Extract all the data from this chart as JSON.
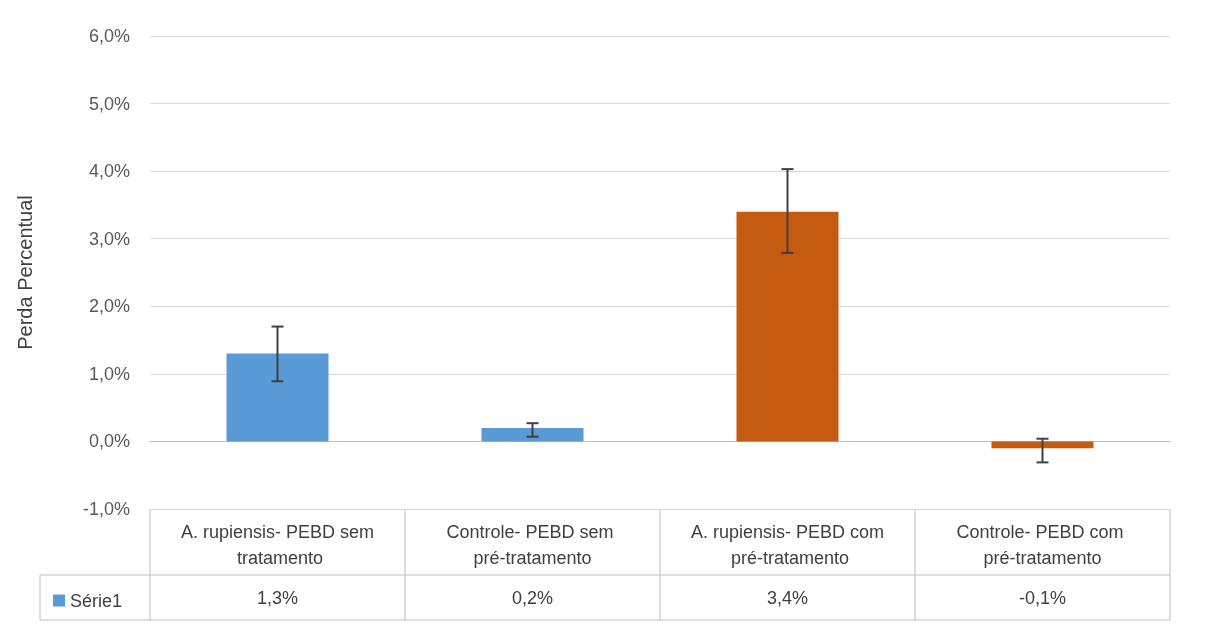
{
  "chart_data": {
    "type": "bar",
    "ylabel": "Perda Percentual",
    "categories": [
      "A. rupiensis- PEBD sem tratamento",
      "Controle- PEBD sem pré-tratamento",
      "A. rupiensis- PEBD com pré-tratamento",
      "Controle- PEBD com pré-tratamento"
    ],
    "series": [
      {
        "name": "Série1",
        "values": [
          1.3,
          0.2,
          3.4,
          -0.1
        ],
        "errors": [
          [
            0.89,
            1.7
          ],
          [
            0.07,
            0.27
          ],
          [
            2.79,
            4.03
          ],
          [
            -0.31,
            0.04
          ]
        ],
        "value_labels": [
          "1,3%",
          "0,2%",
          "3,4%",
          "-0,1%"
        ]
      }
    ],
    "colors": [
      "#5b9bd5",
      "#5b9bd5",
      "#c55a11",
      "#c55a11"
    ],
    "ylim": [
      -1,
      6
    ],
    "yticks": [
      {
        "value": -1,
        "label": "-1,0%"
      },
      {
        "value": 0,
        "label": "0,0%"
      },
      {
        "value": 1,
        "label": "1,0%"
      },
      {
        "value": 2,
        "label": "2,0%"
      },
      {
        "value": 3,
        "label": "3,0%"
      },
      {
        "value": 4,
        "label": "4,0%"
      },
      {
        "value": 5,
        "label": "5,0%"
      },
      {
        "value": 6,
        "label": "6,0%"
      }
    ],
    "grid": "y",
    "legend": "bottom left"
  }
}
